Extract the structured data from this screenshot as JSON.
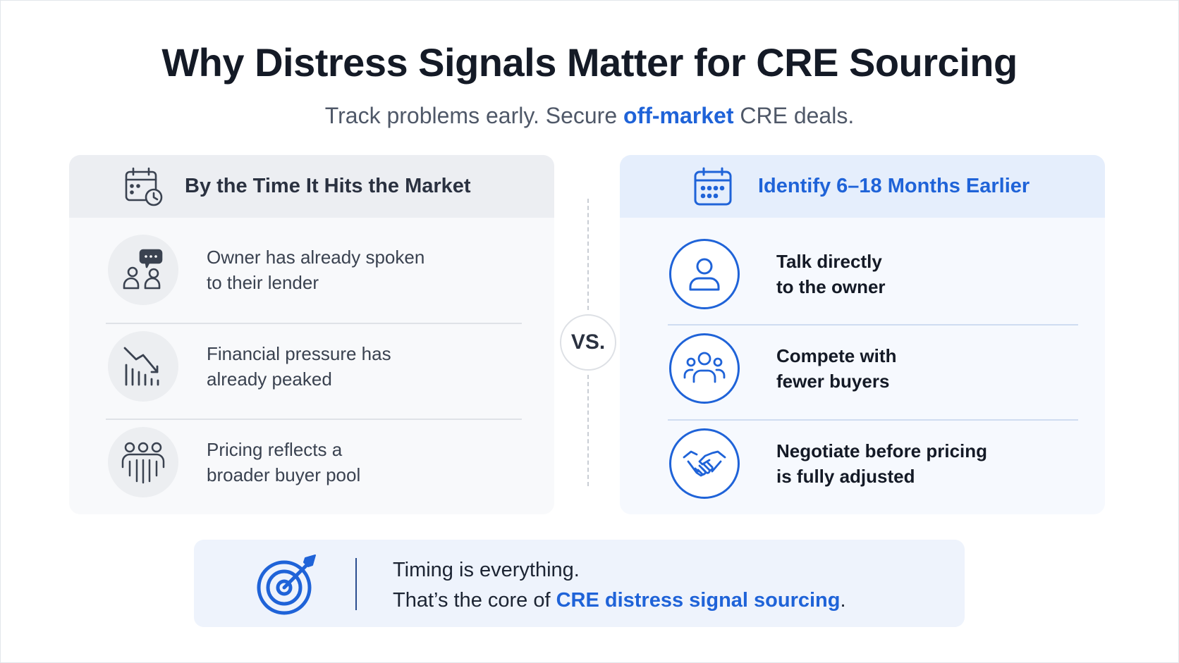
{
  "title": "Why Distress Signals Matter for CRE Sourcing",
  "subtitle": {
    "before": "Track problems early. Secure ",
    "highlight": "off-market",
    "after": " CRE deals."
  },
  "left_panel": {
    "title": "By the Time It Hits the Market",
    "icon": "calendar-clock-icon",
    "items": [
      {
        "icon": "people-chat-icon",
        "line1": "Owner has already spoken",
        "line2": "to their lender"
      },
      {
        "icon": "declining-bars-icon",
        "line1": "Financial pressure has",
        "line2": "already peaked"
      },
      {
        "icon": "crowd-icon",
        "line1": "Pricing reflects a",
        "line2": "broader buyer pool"
      }
    ]
  },
  "vs_label": "VS.",
  "right_panel": {
    "title": "Identify 6–18 Months Earlier",
    "icon": "calendar-icon",
    "items": [
      {
        "icon": "person-icon",
        "line1": "Talk directly",
        "line2": "to the owner"
      },
      {
        "icon": "group-icon",
        "line1": "Compete with",
        "line2": "fewer buyers"
      },
      {
        "icon": "handshake-icon",
        "line1": "Negotiate before pricing",
        "line2": "is fully adjusted"
      }
    ]
  },
  "callout": {
    "icon": "target-icon",
    "line1": "Timing is everything.",
    "line2_before": "That’s the core of ",
    "line2_highlight": "CRE distress signal sourcing",
    "line2_after": "."
  },
  "colors": {
    "accent": "#1f63d8",
    "title": "#141a26",
    "muted": "#4f5868",
    "left_header_bg": "#eceef2",
    "right_header_bg": "#e5eefc",
    "callout_bg": "#eef3fc"
  }
}
